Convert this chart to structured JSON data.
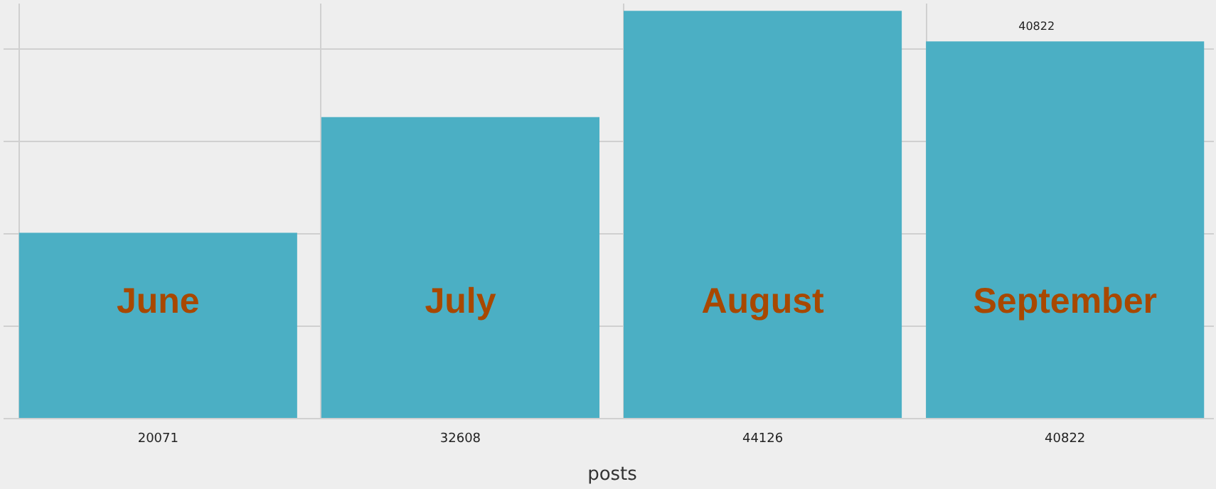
{
  "chart_data": {
    "type": "bar",
    "xlabel": "posts",
    "categories": [
      null,
      null,
      null,
      null
    ],
    "values": [
      20071,
      32608,
      44126,
      40822
    ],
    "color": "#4bafc4",
    "data_labels": true,
    "grid": true,
    "annotations": [
      "June",
      "July",
      "August",
      "September",
      "40822"
    ]
  }
}
